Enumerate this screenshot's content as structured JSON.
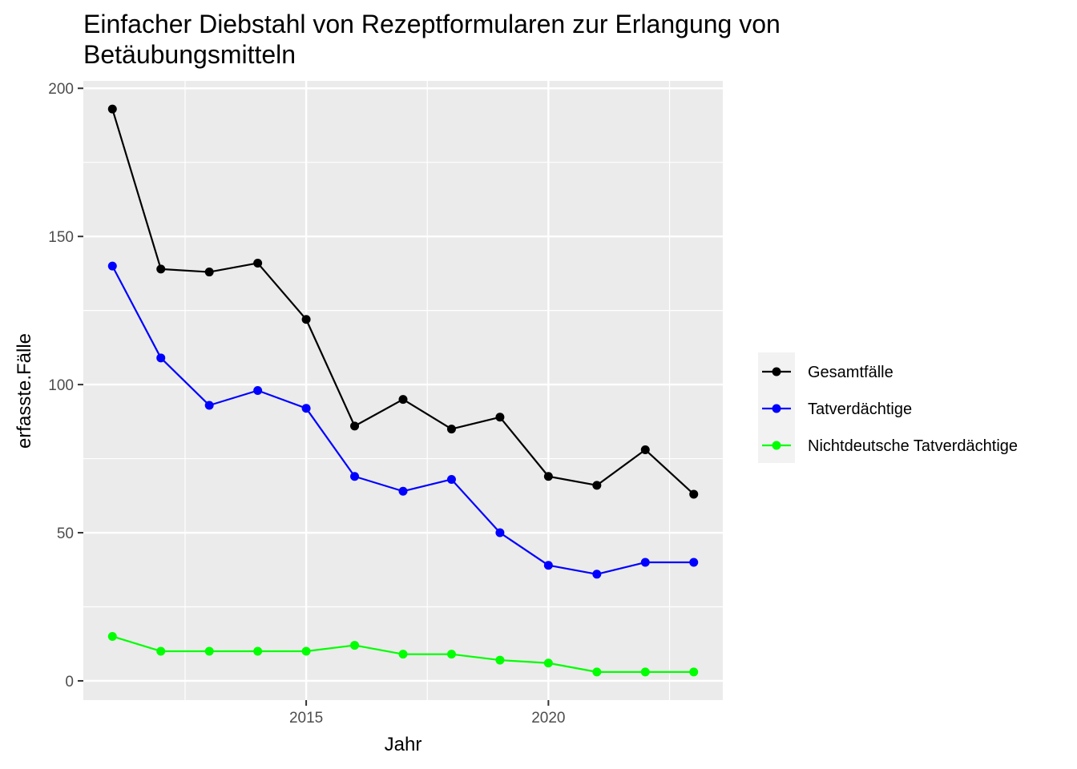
{
  "chart_data": {
    "type": "line",
    "title": "Einfacher Diebstahl von Rezeptformularen zur Erlangung von Betäubungsmitteln",
    "title_lines": [
      "Einfacher Diebstahl von Rezeptformularen zur Erlangung von",
      "Betäubungsmitteln"
    ],
    "xlabel": "Jahr",
    "ylabel": "erfasste.Fälle",
    "x": [
      2011,
      2012,
      2013,
      2014,
      2015,
      2016,
      2017,
      2018,
      2019,
      2020,
      2021,
      2022,
      2023
    ],
    "xlim": [
      2010.4,
      2023.6
    ],
    "ylim": [
      -6.5,
      202.5
    ],
    "x_ticks": [
      2015,
      2020
    ],
    "x_tick_labels": [
      "2015",
      "2020"
    ],
    "x_minor_ticks": [
      2012.5,
      2017.5,
      2022.5
    ],
    "y_ticks": [
      0,
      50,
      100,
      150,
      200
    ],
    "y_tick_labels": [
      "0",
      "50",
      "100",
      "150",
      "200"
    ],
    "y_minor_ticks": [
      25,
      75,
      125,
      175
    ],
    "grid": true,
    "legend_position": "right",
    "series": [
      {
        "name": "Gesamtfälle",
        "color": "#000000",
        "values": [
          193,
          139,
          138,
          141,
          122,
          86,
          95,
          85,
          89,
          69,
          66,
          78,
          63
        ]
      },
      {
        "name": "Tatverdächtige",
        "color": "#0000ff",
        "values": [
          140,
          109,
          93,
          98,
          92,
          69,
          64,
          68,
          50,
          39,
          36,
          40,
          40
        ]
      },
      {
        "name": "Nichtdeutsche Tatverdächtige",
        "color": "#00ff00",
        "values": [
          15,
          10,
          10,
          10,
          10,
          12,
          9,
          9,
          7,
          6,
          3,
          3,
          3
        ]
      }
    ],
    "panel_background": "#ebebeb",
    "grid_color": "#ffffff"
  }
}
